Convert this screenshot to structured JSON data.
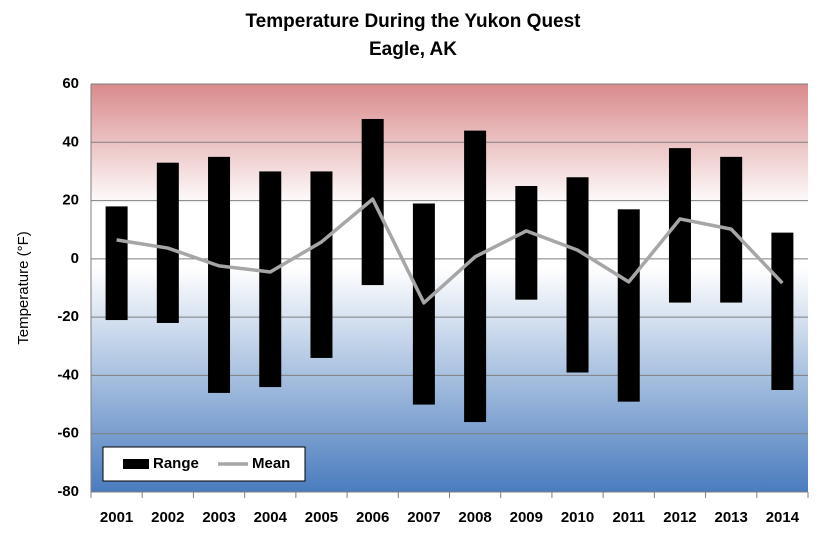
{
  "chart_data": {
    "type": "range-bar-line",
    "title": "Temperature During the Yukon Quest",
    "subtitle": "Eagle, AK",
    "y_label": "Temperature (°F)",
    "categories": [
      "2001",
      "2002",
      "2003",
      "2004",
      "2005",
      "2006",
      "2007",
      "2008",
      "2009",
      "2010",
      "2011",
      "2012",
      "2013",
      "2014"
    ],
    "series": [
      {
        "name": "Range",
        "color": "#000000",
        "low": [
          -21,
          -22,
          -46,
          -44,
          -34,
          -9,
          -50,
          -56,
          -14,
          -39,
          -49,
          -15,
          -15,
          -45
        ],
        "high": [
          18,
          33,
          35,
          30,
          30,
          48,
          19,
          44,
          25,
          28,
          17,
          38,
          35,
          9
        ]
      },
      {
        "name": "Mean",
        "color": "#a6a6a6",
        "values": [
          6.5,
          3.7,
          -2.4,
          -4.5,
          5.8,
          20.5,
          -15.1,
          0.7,
          9.6,
          3,
          -7.9,
          13.7,
          10.2,
          -8.3
        ]
      }
    ],
    "ylim": [
      -80,
      60
    ],
    "yticks": [
      -80,
      -60,
      -40,
      -20,
      0,
      20,
      40,
      60
    ],
    "grid": true,
    "legend": "lower left"
  }
}
